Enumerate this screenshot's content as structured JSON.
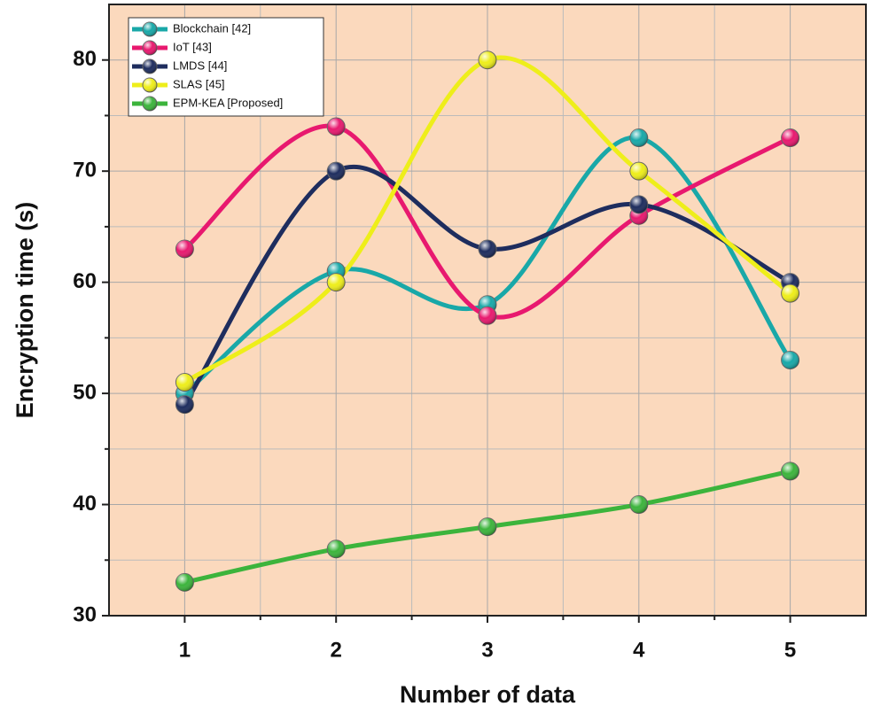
{
  "chart_data": {
    "type": "line",
    "xlabel": "Number of data",
    "ylabel": "Encryption time (s)",
    "x": [
      1,
      2,
      3,
      4,
      5
    ],
    "xlim": [
      0.5,
      5.5
    ],
    "xticks": [
      1,
      2,
      3,
      4,
      5
    ],
    "xminorticks": [
      1.5,
      2.5,
      3.5,
      4.5
    ],
    "ylim": [
      30,
      85
    ],
    "yticks": [
      30,
      40,
      50,
      60,
      70,
      80
    ],
    "yminorticks": [
      35,
      45,
      55,
      65,
      75
    ],
    "grid": true,
    "smooth": true,
    "legend": "upper left",
    "background": "#fbd9bd",
    "series": [
      {
        "name": "Blockchain [42]",
        "color": "#19a8a8",
        "values": [
          50,
          61,
          58,
          73,
          53
        ]
      },
      {
        "name": "IoT [43]",
        "color": "#e8196f",
        "values": [
          63,
          74,
          57,
          66,
          73
        ]
      },
      {
        "name": "LMDS [44]",
        "color": "#1e2d5e",
        "values": [
          49,
          70,
          63,
          67,
          60
        ]
      },
      {
        "name": "SLAS [45]",
        "color": "#eeee1a",
        "values": [
          51,
          60,
          80,
          70,
          59
        ]
      },
      {
        "name": "EPM-KEA [Proposed]",
        "color": "#3cb43c",
        "values": [
          33,
          36,
          38,
          40,
          43
        ]
      }
    ]
  }
}
